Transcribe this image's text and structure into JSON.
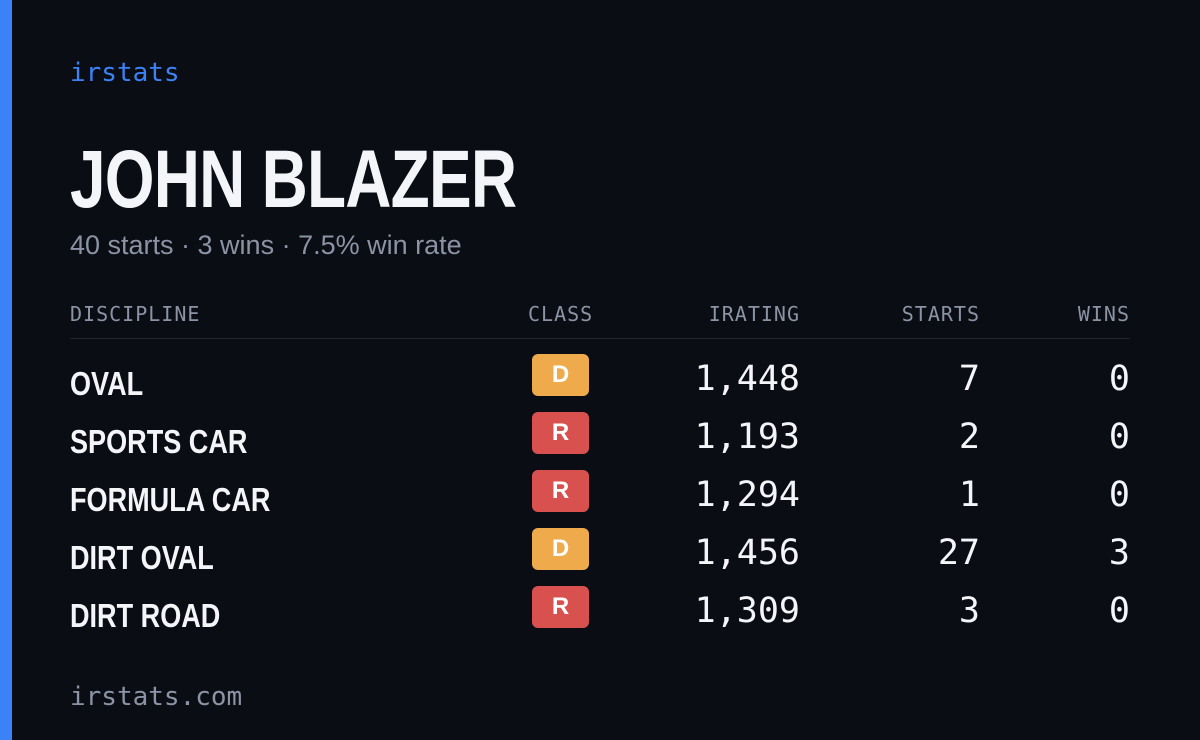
{
  "brand": "irstats",
  "driver": {
    "name": "JOHN BLAZER",
    "summary": "40 starts · 3 wins · 7.5% win rate"
  },
  "table": {
    "headers": {
      "discipline": "DISCIPLINE",
      "class": "CLASS",
      "irating": "IRATING",
      "starts": "STARTS",
      "wins": "WINS"
    },
    "rows": [
      {
        "discipline": "OVAL",
        "class": "D",
        "irating": "1,448",
        "starts": "7",
        "wins": "0"
      },
      {
        "discipline": "SPORTS CAR",
        "class": "R",
        "irating": "1,193",
        "starts": "2",
        "wins": "0"
      },
      {
        "discipline": "FORMULA CAR",
        "class": "R",
        "irating": "1,294",
        "starts": "1",
        "wins": "0"
      },
      {
        "discipline": "DIRT OVAL",
        "class": "D",
        "irating": "1,456",
        "starts": "27",
        "wins": "3"
      },
      {
        "discipline": "DIRT ROAD",
        "class": "R",
        "irating": "1,309",
        "starts": "3",
        "wins": "0"
      }
    ]
  },
  "footer": "irstats.com",
  "colors": {
    "accent": "#3b82f6",
    "class_d": "#efaa4c",
    "class_r": "#d9514e",
    "background": "#0a0d14"
  }
}
